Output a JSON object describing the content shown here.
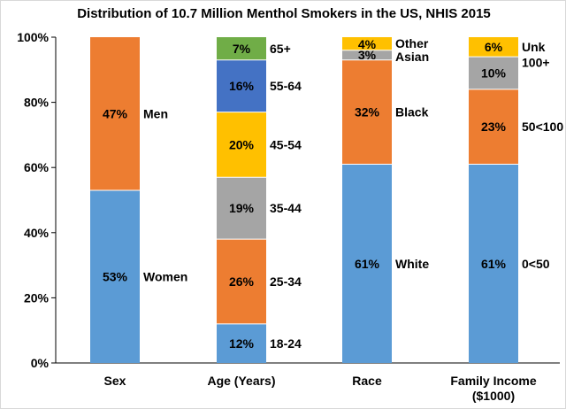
{
  "chart_data": {
    "type": "bar",
    "stacked": true,
    "title": "Distribution of 10.7 Million Menthol Smokers in the US, NHIS 2015",
    "ylim": [
      0,
      100
    ],
    "y_ticks": [
      "0%",
      "20%",
      "40%",
      "60%",
      "80%",
      "100%"
    ],
    "grid": false,
    "legend": "none",
    "categories": [
      "Sex",
      "Age (Years)",
      "Race",
      "Family Income ($1000)"
    ],
    "category_label_lines": [
      [
        "Sex"
      ],
      [
        "Age (Years)"
      ],
      [
        "Race"
      ],
      [
        "Family Income",
        "($1000)"
      ]
    ],
    "bars": [
      {
        "category": "Sex",
        "segments": [
          {
            "label": "Women",
            "value": 53,
            "display": "53%",
            "color": "#5b9bd5"
          },
          {
            "label": "Men",
            "value": 47,
            "display": "47%",
            "color": "#ed7d31"
          }
        ]
      },
      {
        "category": "Age (Years)",
        "segments": [
          {
            "label": "18-24",
            "value": 12,
            "display": "12%",
            "color": "#5b9bd5"
          },
          {
            "label": "25-34",
            "value": 26,
            "display": "26%",
            "color": "#ed7d31"
          },
          {
            "label": "35-44",
            "value": 19,
            "display": "19%",
            "color": "#a5a5a5"
          },
          {
            "label": "45-54",
            "value": 20,
            "display": "20%",
            "color": "#ffc000"
          },
          {
            "label": "55-64",
            "value": 16,
            "display": "16%",
            "color": "#4472c4"
          },
          {
            "label": "65+",
            "value": 7,
            "display": "7%",
            "color": "#70ad47"
          }
        ]
      },
      {
        "category": "Race",
        "segments": [
          {
            "label": "White",
            "value": 61,
            "display": "61%",
            "color": "#5b9bd5"
          },
          {
            "label": "Black",
            "value": 32,
            "display": "32%",
            "color": "#ed7d31"
          },
          {
            "label": "Asian",
            "value": 3,
            "display": "3%",
            "color": "#a5a5a5"
          },
          {
            "label": "Other",
            "value": 4,
            "display": "4%",
            "color": "#ffc000"
          }
        ]
      },
      {
        "category": "Family Income ($1000)",
        "segments": [
          {
            "label": "0<50",
            "value": 61,
            "display": "61%",
            "color": "#5b9bd5"
          },
          {
            "label": "50<100",
            "value": 23,
            "display": "23%",
            "color": "#ed7d31"
          },
          {
            "label": "100+",
            "value": 10,
            "display": "10%",
            "color": "#a5a5a5"
          },
          {
            "label": "Unk",
            "value": 6,
            "display": "6%",
            "color": "#ffc000"
          }
        ]
      }
    ]
  }
}
